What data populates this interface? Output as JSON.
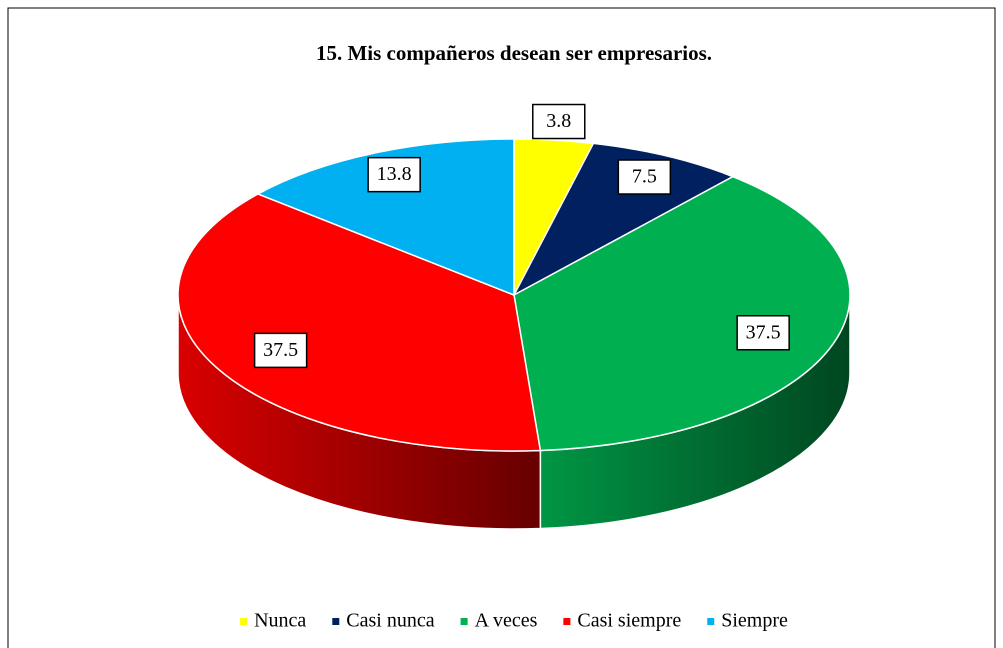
{
  "chart_data": {
    "type": "pie",
    "title": "15.  Mis compañeros desean ser empresarios.",
    "categories": [
      "Nunca",
      "Casi nunca",
      "A veces",
      "Casi siempre",
      "Siempre"
    ],
    "values": [
      3.8,
      7.5,
      37.5,
      37.5,
      13.8
    ],
    "colors": [
      "#ffff00",
      "#002060",
      "#00b050",
      "#ff0000",
      "#00b0f0"
    ],
    "legend": "bottom"
  }
}
